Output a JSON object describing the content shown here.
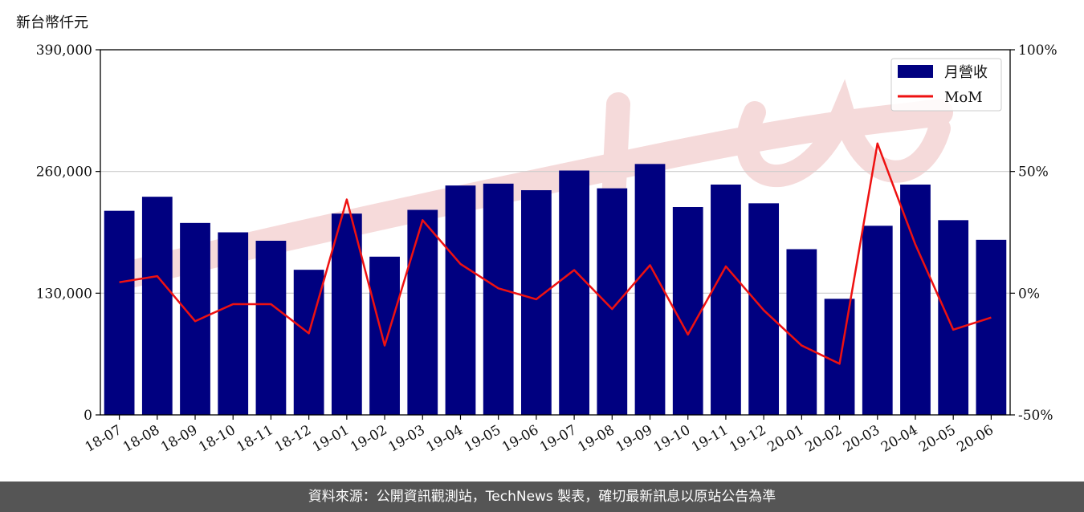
{
  "unit_label": "新台幣仟元",
  "footer": "資料來源：公開資訊觀測站，TechNews 製表，確切最新訊息以原站公告為準",
  "colors": {
    "bar": "#000080",
    "line": "#ee1111",
    "grid": "#cccccc",
    "footer_bg": "#555555",
    "watermark": "#f2c9c9"
  },
  "chart_data": {
    "type": "bar",
    "categories": [
      "18-07",
      "18-08",
      "18-09",
      "18-10",
      "18-11",
      "18-12",
      "19-01",
      "19-02",
      "19-03",
      "19-04",
      "19-05",
      "19-06",
      "19-07",
      "19-08",
      "19-09",
      "19-10",
      "19-11",
      "19-12",
      "20-01",
      "20-02",
      "20-03",
      "20-04",
      "20-05",
      "20-06"
    ],
    "series": [
      {
        "name": "月營收",
        "type": "bar",
        "axis": "left",
        "values": [
          218000,
          233000,
          205000,
          195000,
          186000,
          155000,
          215000,
          169000,
          219000,
          245000,
          247000,
          240000,
          261000,
          242000,
          268000,
          222000,
          246000,
          226000,
          177000,
          124000,
          202000,
          246000,
          208000,
          187000
        ]
      },
      {
        "name": "MoM",
        "type": "line",
        "axis": "right",
        "values": [
          4.5,
          7,
          -11.5,
          -4.5,
          -4.5,
          -16.5,
          38.5,
          -21.5,
          30,
          12,
          2,
          -2.5,
          9.5,
          -6.5,
          11.5,
          -17,
          11,
          -7,
          -21.5,
          -29,
          61.5,
          20,
          -15,
          -10
        ]
      }
    ],
    "left_axis": {
      "ylim": [
        0,
        390000
      ],
      "ticks": [
        0,
        130000,
        260000,
        390000
      ],
      "tick_labels": [
        "0",
        "130,000",
        "260,000",
        "390,000"
      ]
    },
    "right_axis": {
      "ylim": [
        -50,
        100
      ],
      "ticks": [
        -50,
        0,
        50,
        100
      ],
      "tick_labels": [
        "-50%",
        "0%",
        "50%",
        "100%"
      ]
    },
    "grid": "horizontal",
    "legend_position": "top-right"
  }
}
